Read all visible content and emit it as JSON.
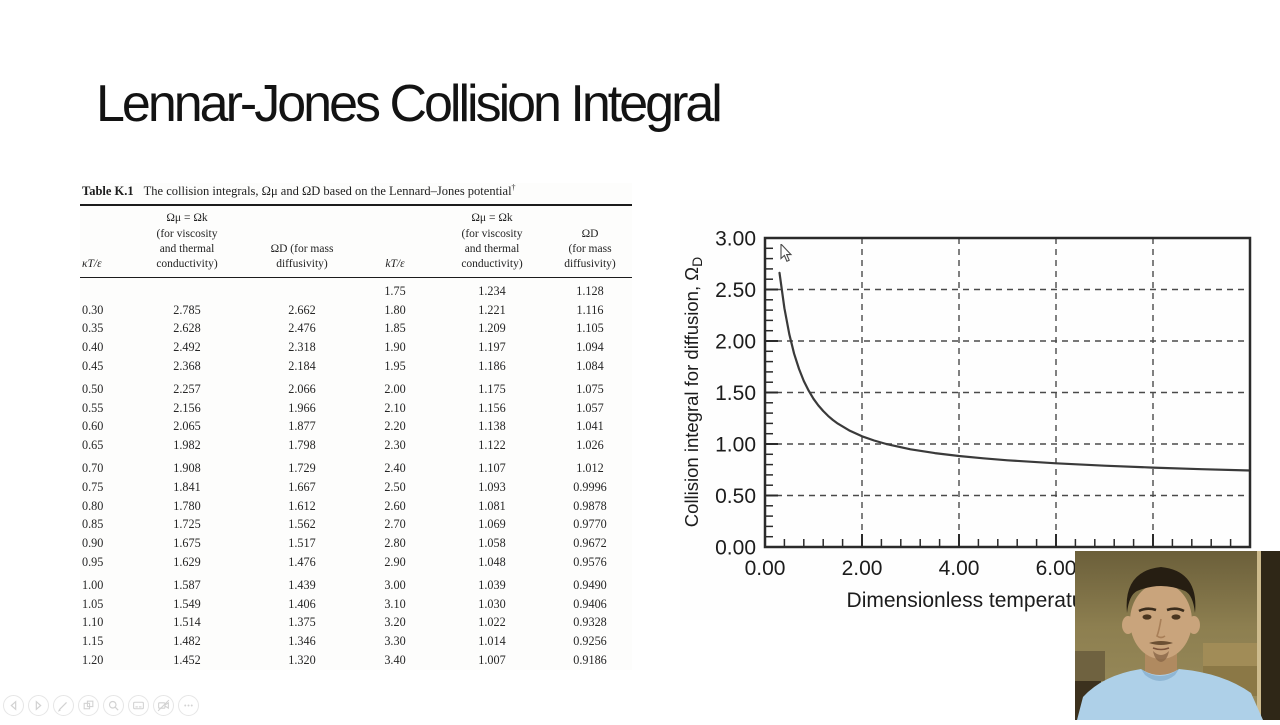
{
  "slide": {
    "title": "Lennar-Jones Collision Integral"
  },
  "table": {
    "caption_label": "Table K.1",
    "caption_text": "The collision integrals, Ωμ and ΩD based on the Lennard–Jones potential",
    "caption_dagger": "†",
    "headers": [
      "κT/ε",
      "Ωμ = Ωk\n(for viscosity\nand thermal\nconductivity)",
      "ΩD (for mass\ndiffusivity)",
      "kT/ε",
      "Ωμ = Ωk\n(for viscosity\nand thermal\nconductivity)",
      "ΩD\n(for mass\ndiffusivity)"
    ],
    "groups": [
      [
        [
          "",
          "",
          "",
          "1.75",
          "1.234",
          "1.128"
        ],
        [
          "0.30",
          "2.785",
          "2.662",
          "1.80",
          "1.221",
          "1.116"
        ],
        [
          "0.35",
          "2.628",
          "2.476",
          "1.85",
          "1.209",
          "1.105"
        ],
        [
          "0.40",
          "2.492",
          "2.318",
          "1.90",
          "1.197",
          "1.094"
        ],
        [
          "0.45",
          "2.368",
          "2.184",
          "1.95",
          "1.186",
          "1.084"
        ]
      ],
      [
        [
          "0.50",
          "2.257",
          "2.066",
          "2.00",
          "1.175",
          "1.075"
        ],
        [
          "0.55",
          "2.156",
          "1.966",
          "2.10",
          "1.156",
          "1.057"
        ],
        [
          "0.60",
          "2.065",
          "1.877",
          "2.20",
          "1.138",
          "1.041"
        ],
        [
          "0.65",
          "1.982",
          "1.798",
          "2.30",
          "1.122",
          "1.026"
        ]
      ],
      [
        [
          "0.70",
          "1.908",
          "1.729",
          "2.40",
          "1.107",
          "1.012"
        ],
        [
          "0.75",
          "1.841",
          "1.667",
          "2.50",
          "1.093",
          "0.9996"
        ],
        [
          "0.80",
          "1.780",
          "1.612",
          "2.60",
          "1.081",
          "0.9878"
        ],
        [
          "0.85",
          "1.725",
          "1.562",
          "2.70",
          "1.069",
          "0.9770"
        ],
        [
          "0.90",
          "1.675",
          "1.517",
          "2.80",
          "1.058",
          "0.9672"
        ],
        [
          "0.95",
          "1.629",
          "1.476",
          "2.90",
          "1.048",
          "0.9576"
        ]
      ],
      [
        [
          "1.00",
          "1.587",
          "1.439",
          "3.00",
          "1.039",
          "0.9490"
        ],
        [
          "1.05",
          "1.549",
          "1.406",
          "3.10",
          "1.030",
          "0.9406"
        ],
        [
          "1.10",
          "1.514",
          "1.375",
          "3.20",
          "1.022",
          "0.9328"
        ],
        [
          "1.15",
          "1.482",
          "1.346",
          "3.30",
          "1.014",
          "0.9256"
        ],
        [
          "1.20",
          "1.452",
          "1.320",
          "3.40",
          "1.007",
          "0.9186"
        ]
      ]
    ]
  },
  "chart_data": {
    "type": "line",
    "title": "",
    "xlabel_visible": "Dimensionless temperatu",
    "ylabel_main": "Collision integral for diffusion, Ω",
    "ylabel_sub": "D",
    "xlim": [
      0,
      10
    ],
    "ylim": [
      0,
      3
    ],
    "grid": "dashed",
    "x_ticks": [
      {
        "v": 0,
        "label": "0.00"
      },
      {
        "v": 2,
        "label": "2.00"
      },
      {
        "v": 4,
        "label": "4.00"
      },
      {
        "v": 6,
        "label": "6.00"
      }
    ],
    "x_gridlines": [
      2,
      4,
      6,
      8
    ],
    "y_ticks": [
      {
        "v": 0,
        "label": "0.00"
      },
      {
        "v": 0.5,
        "label": "0.50"
      },
      {
        "v": 1,
        "label": "1.00"
      },
      {
        "v": 1.5,
        "label": "1.50"
      },
      {
        "v": 2,
        "label": "2.00"
      },
      {
        "v": 2.5,
        "label": "2.50"
      },
      {
        "v": 3,
        "label": "3.00"
      }
    ],
    "y_gridlines": [
      0.5,
      1,
      1.5,
      2,
      2.5
    ],
    "series": [
      {
        "x": [
          0.3,
          0.4,
          0.5,
          0.6,
          0.7,
          0.8,
          0.9,
          1.0,
          1.1,
          1.2,
          1.3,
          1.4,
          1.5,
          1.75,
          2.0,
          2.25,
          2.5,
          3.0,
          3.5,
          4.0,
          4.5,
          5.0,
          6.0,
          7.0,
          8.0,
          9.0,
          10.0
        ],
        "y": [
          2.662,
          2.318,
          2.066,
          1.877,
          1.729,
          1.612,
          1.517,
          1.439,
          1.375,
          1.32,
          1.273,
          1.233,
          1.198,
          1.128,
          1.075,
          1.034,
          0.9996,
          0.949,
          0.912,
          0.8836,
          0.861,
          0.8422,
          0.8124,
          0.7896,
          0.7712,
          0.7556,
          0.7424
        ]
      }
    ],
    "line_color": "#3a3a3a"
  },
  "webcam": {
    "colors": {
      "wall": "#8d7f50",
      "wall_dark": "#6b5f3a",
      "panel_dark": "#2f2717",
      "panel_line": "#cdbb8d",
      "couch": "#a18c57",
      "skin": "#c9a47c",
      "hair": "#261e12",
      "shirt": "#aed0e8",
      "shadow": "#3c311e"
    }
  },
  "toolbar": {
    "buttons": [
      {
        "name": "previous-slide",
        "icon": "chevron-left"
      },
      {
        "name": "next-slide",
        "icon": "chevron-right"
      },
      {
        "name": "pen-tools",
        "icon": "pen"
      },
      {
        "name": "see-all-slides",
        "icon": "slides-grid"
      },
      {
        "name": "zoom-slide",
        "icon": "magnifier"
      },
      {
        "name": "captions",
        "icon": "captions"
      },
      {
        "name": "camera-toggle",
        "icon": "camera-off"
      },
      {
        "name": "more-options",
        "icon": "ellipsis"
      }
    ]
  }
}
